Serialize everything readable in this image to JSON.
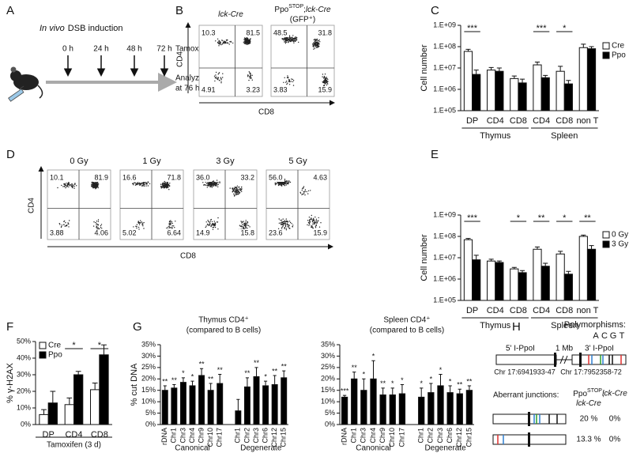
{
  "panel_labels": [
    "A",
    "B",
    "C",
    "D",
    "E",
    "F",
    "G",
    "H"
  ],
  "panel_a": {
    "title_italic": "In vivo",
    "title_rest": "DSB induction",
    "times": [
      "0 h",
      "24 h",
      "48 h",
      "72 h"
    ],
    "treatment": "Tamoxifen i.p.",
    "analyze": [
      "Analyze",
      "at 76 h"
    ]
  },
  "flow_b": {
    "y_axis": "CD4",
    "x_axis": "CD8",
    "plots": [
      {
        "title": [
          "lck-Cre"
        ],
        "quadrants": [
          "10.3",
          "81.5",
          "4.91",
          "3.23"
        ]
      },
      {
        "title": [
          "Ppo",
          "STOP",
          ";",
          "lck-Cre"
        ],
        "subtitle": "(GFP⁺)",
        "quadrants": [
          "48.5",
          "31.8",
          "3.83",
          "15.9"
        ]
      }
    ]
  },
  "flow_d": {
    "y_axis": "CD4",
    "x_axis": "CD8",
    "plots": [
      {
        "title": "0 Gy",
        "quadrants": [
          "10.1",
          "81.9",
          "3.88",
          "4.06"
        ]
      },
      {
        "title": "1 Gy",
        "quadrants": [
          "16.6",
          "71.8",
          "5.02",
          "6.64"
        ]
      },
      {
        "title": "3 Gy",
        "quadrants": [
          "36.0",
          "33.2",
          "14.9",
          "15.8"
        ]
      },
      {
        "title": "5 Gy",
        "quadrants": [
          "56.0",
          "4.63",
          "23.6",
          "15.9"
        ]
      }
    ]
  },
  "panel_h": {
    "polymorphisms_label": "Polymorphisms:",
    "letters": [
      {
        "letter": "A",
        "color": "#e0312f"
      },
      {
        "letter": "C",
        "color": "#2ca02c"
      },
      {
        "letter": "G",
        "color": "#111111"
      },
      {
        "letter": "T",
        "color": "#2f7fd0"
      }
    ],
    "site5": "5' I-PpoI",
    "distance": "1 Mb",
    "site3": "3' I-PpoI",
    "coord5": "Chr 17:6941933-47",
    "coord3": "Chr 17:7952358-72",
    "junctions_label": "Aberrant junctions:",
    "col1": [
      "Ppo",
      "STOP",
      ";",
      "lck-Cre"
    ],
    "col2": "lck-Cre",
    "rows": [
      {
        "col1": "20 %",
        "col2": "0%"
      },
      {
        "col1": "13.3 %",
        "col2": "0%"
      }
    ]
  },
  "chart_data": [
    {
      "type": "bar",
      "ylabel": "Cell number",
      "log_scale": true,
      "ylim": [
        100000,
        1000000000
      ],
      "yticks": [
        {
          "value": 100000,
          "label": "1.E+05"
        },
        {
          "value": 1000000,
          "label": "1.E+06"
        },
        {
          "value": 10000000,
          "label": "1.E+07"
        },
        {
          "value": 100000000,
          "label": "1.E+08"
        },
        {
          "value": 1000000000,
          "label": "1.E+09"
        }
      ],
      "groups": [
        {
          "name": "Thymus",
          "categories": [
            "DP",
            "CD4",
            "CD8"
          ]
        },
        {
          "name": "Spleen",
          "categories": [
            "CD4",
            "CD8",
            "non T"
          ]
        }
      ],
      "series": [
        {
          "name": "Cre",
          "color": "#ffffff",
          "values": [
            60000000,
            8000000,
            3200000,
            14000000,
            7000000,
            90000000
          ],
          "errors": [
            15000000,
            2500000,
            1000000,
            5000000,
            5000000,
            40000000
          ]
        },
        {
          "name": "Ppo",
          "color": "#000000",
          "values": [
            5000000,
            7000000,
            2000000,
            3500000,
            1800000,
            80000000
          ],
          "errors": [
            3000000,
            3000000,
            1000000,
            1000000,
            800000,
            20000000
          ]
        }
      ],
      "significance": [
        "***",
        null,
        null,
        "***",
        "*",
        null
      ],
      "legend": "right"
    },
    {
      "type": "bar",
      "ylabel": "Cell number",
      "log_scale": true,
      "ylim": [
        100000,
        1000000000
      ],
      "yticks": [
        {
          "value": 100000,
          "label": "1.E+05"
        },
        {
          "value": 1000000,
          "label": "1.E+06"
        },
        {
          "value": 10000000,
          "label": "1.E+07"
        },
        {
          "value": 100000000,
          "label": "1.E+08"
        },
        {
          "value": 1000000000,
          "label": "1.E+09"
        }
      ],
      "groups": [
        {
          "name": "Thymus",
          "categories": [
            "DP",
            "CD4",
            "CD8"
          ]
        },
        {
          "name": "Spleen",
          "categories": [
            "CD4",
            "CD8",
            "non T"
          ]
        }
      ],
      "series": [
        {
          "name": "0 Gy",
          "color": "#ffffff",
          "values": [
            70000000,
            7000000,
            3000000,
            25000000,
            15000000,
            100000000
          ],
          "errors": [
            10000000,
            1500000,
            500000,
            7000000,
            5000000,
            15000000
          ]
        },
        {
          "name": "3 Gy",
          "color": "#000000",
          "values": [
            8000000,
            6000000,
            2000000,
            4000000,
            1700000,
            25000000
          ],
          "errors": [
            5000000,
            1000000,
            500000,
            1500000,
            600000,
            12000000
          ]
        }
      ],
      "significance": [
        "***",
        null,
        "*",
        "**",
        "*",
        "**"
      ],
      "legend": "right"
    },
    {
      "type": "bar",
      "ylabel": "% γ-H2AX",
      "xlabel": "Tamoxifen (3 d)",
      "ylim": [
        0,
        50
      ],
      "yticks": [
        {
          "value": 0,
          "label": "0%"
        },
        {
          "value": 10,
          "label": "10%"
        },
        {
          "value": 20,
          "label": "20%"
        },
        {
          "value": 30,
          "label": "30%"
        },
        {
          "value": 40,
          "label": "40%"
        },
        {
          "value": 50,
          "label": "50%"
        }
      ],
      "categories": [
        "DP",
        "CD4",
        "CD8"
      ],
      "series": [
        {
          "name": "Cre",
          "color": "#ffffff",
          "values": [
            6,
            12,
            21
          ],
          "errors": [
            3,
            4,
            4
          ]
        },
        {
          "name": "Ppo",
          "color": "#000000",
          "values": [
            13,
            30,
            42
          ],
          "errors": [
            7,
            2,
            6
          ]
        }
      ],
      "significance": [
        null,
        "*",
        "*"
      ],
      "legend": "upper left"
    },
    {
      "type": "bar",
      "title": "Thymus CD4⁺",
      "subtitle": "(compared to B cells)",
      "ylabel": "% cut DNA",
      "ylim": [
        0,
        35
      ],
      "yticks": [
        {
          "value": 0,
          "label": "0%"
        },
        {
          "value": 5,
          "label": "5%"
        },
        {
          "value": 10,
          "label": "10%"
        },
        {
          "value": 15,
          "label": "15%"
        },
        {
          "value": 20,
          "label": "20%"
        },
        {
          "value": 25,
          "label": "25%"
        },
        {
          "value": 30,
          "label": "30%"
        },
        {
          "value": 35,
          "label": "35%"
        }
      ],
      "groups": [
        {
          "name": "Canonical",
          "categories": [
            "rDNA",
            "Chr1",
            "Chr3",
            "Chr4",
            "Chr9",
            "Chr10",
            "Chr17"
          ]
        },
        {
          "name": "Degenerate",
          "categories": [
            "Chr1",
            "Chr2",
            "Chr3",
            "Chr6",
            "Chr12",
            "Chr15"
          ]
        }
      ],
      "series": [
        {
          "color": "#000000",
          "values": [
            15,
            16,
            18.5,
            17,
            21.5,
            15,
            18,
            6,
            16.5,
            21,
            17,
            17.5,
            20.5
          ],
          "errors": [
            2,
            1.5,
            2,
            2,
            3,
            3,
            4,
            5,
            4,
            4,
            2,
            4,
            3
          ]
        }
      ],
      "significance": [
        "**",
        "**",
        "*",
        "*",
        "**",
        "**",
        "**",
        null,
        "**",
        "**",
        "*",
        "**",
        "**"
      ]
    },
    {
      "type": "bar",
      "title": "Spleen CD4⁺",
      "subtitle": "(compared to B cells)",
      "ylim": [
        0,
        35
      ],
      "yticks": [
        {
          "value": 0,
          "label": "0%"
        },
        {
          "value": 5,
          "label": "5%"
        },
        {
          "value": 10,
          "label": "10%"
        },
        {
          "value": 15,
          "label": "15%"
        },
        {
          "value": 20,
          "label": "20%"
        },
        {
          "value": 25,
          "label": "25%"
        },
        {
          "value": 30,
          "label": "30%"
        },
        {
          "value": 35,
          "label": "35%"
        }
      ],
      "groups": [
        {
          "name": "Canonical",
          "categories": [
            "rDNA",
            "Chr1",
            "Chr3",
            "Chr4",
            "Chr9",
            "Chr10",
            "Chr17"
          ]
        },
        {
          "name": "Degenerate",
          "categories": [
            "Chr1",
            "Chr2",
            "Chr3",
            "Chr6",
            "Chr12",
            "Chr15"
          ]
        }
      ],
      "series": [
        {
          "color": "#000000",
          "values": [
            12,
            20,
            15,
            20,
            13,
            13,
            13.5,
            12,
            14,
            17,
            14,
            13.5,
            15
          ],
          "errors": [
            0.8,
            3,
            5,
            8,
            3,
            3,
            4,
            4,
            4,
            5,
            3,
            2,
            2
          ]
        }
      ],
      "significance": [
        "***",
        "**",
        "*",
        "*",
        "**",
        "*",
        "*",
        "*",
        "*",
        "*",
        "*",
        "**",
        "**"
      ]
    }
  ]
}
